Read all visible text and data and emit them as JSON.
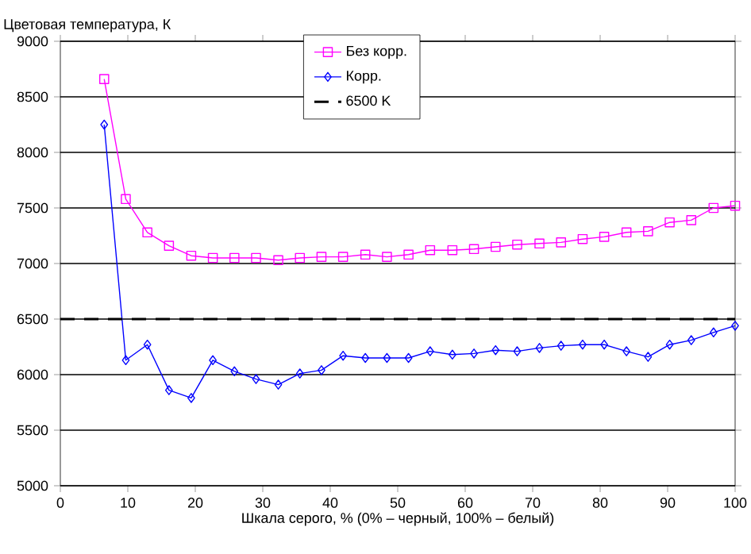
{
  "chart_data": {
    "type": "line",
    "ylabel": "Цветовая температура, К",
    "xlabel": "Шкала серого, % (0% – черный, 100% – белый)",
    "x": [
      6.5,
      9.7,
      12.9,
      16.1,
      19.4,
      22.6,
      25.8,
      29.0,
      32.3,
      35.5,
      38.7,
      41.9,
      45.2,
      48.4,
      51.6,
      54.8,
      58.1,
      61.3,
      64.5,
      67.7,
      71.0,
      74.2,
      77.4,
      80.6,
      83.9,
      87.1,
      90.3,
      93.5,
      96.8,
      100
    ],
    "series": [
      {
        "name": "Без корр.",
        "color": "#ff00ff",
        "marker": "square",
        "values": [
          8660,
          7580,
          7280,
          7160,
          7070,
          7050,
          7050,
          7050,
          7030,
          7050,
          7060,
          7060,
          7080,
          7060,
          7080,
          7120,
          7120,
          7130,
          7150,
          7170,
          7180,
          7190,
          7220,
          7240,
          7280,
          7290,
          7370,
          7390,
          7500,
          7520
        ]
      },
      {
        "name": "Корр.",
        "color": "#0000ff",
        "marker": "diamond",
        "values": [
          8250,
          6130,
          6270,
          5860,
          5790,
          6130,
          6030,
          5960,
          5910,
          6010,
          6040,
          6170,
          6150,
          6150,
          6150,
          6210,
          6180,
          6190,
          6220,
          6210,
          6240,
          6260,
          6270,
          6270,
          6210,
          6160,
          6270,
          6310,
          6380,
          6440
        ]
      }
    ],
    "ref_lines": [
      {
        "axis": "y",
        "value": 6500,
        "label": "6500 K",
        "color": "#000000",
        "line_style": "dashed"
      }
    ],
    "xlim": [
      0,
      100
    ],
    "ylim": [
      5000,
      9000
    ],
    "xticks": [
      0,
      10,
      20,
      30,
      40,
      50,
      60,
      70,
      80,
      90,
      100
    ],
    "yticks": [
      5000,
      5500,
      6000,
      6500,
      7000,
      7500,
      8000,
      8500,
      9000
    ],
    "grid": "y",
    "legend": "top",
    "line_style": "solid"
  }
}
